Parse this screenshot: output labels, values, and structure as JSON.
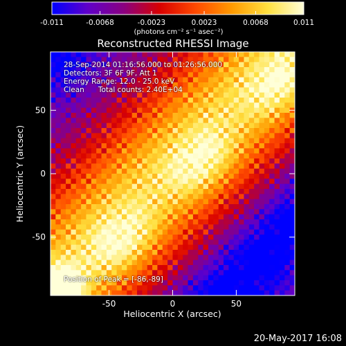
{
  "chart_data": {
    "type": "heatmap",
    "title": "Reconstructed RHESSI Image",
    "xlabel": "Heliocentric X (arcsec)",
    "ylabel": "Heliocentric Y (arcsec)",
    "xlim": [
      -96,
      96
    ],
    "ylim": [
      -96,
      96
    ],
    "x_ticks": [
      "-50",
      "0",
      "50"
    ],
    "y_ticks": [
      "50",
      "0",
      "-50"
    ],
    "x_tick_values": [
      -50,
      0,
      50
    ],
    "y_tick_values": [
      50,
      0,
      -50
    ],
    "colorbar": {
      "range": [
        -0.011,
        0.011
      ],
      "tick_labels": [
        "-0.011",
        "-0.0068",
        "-0.0023",
        "0.0023",
        "0.0068",
        "0.011"
      ],
      "tick_values": [
        -0.011,
        -0.0068,
        -0.0023,
        0.0023,
        0.0068,
        0.011
      ],
      "unit_label": "(photons cm⁻² s⁻¹ asec⁻²)"
    },
    "annotations": {
      "time_range": "28-Sep-2014 01:16:56.000 to 01:26:56.000",
      "detectors": "Detectors: 3F 6F 9F, Att 1",
      "energy_range": "Energy Range: 12.0 - 25.0 keV",
      "clean_line": "Clean      Total counts: 2.40E+04",
      "peak_position": "Position of Peak = [-86,-89]"
    },
    "colors": {
      "colormap": [
        "#0000ff",
        "#6000c8",
        "#8a0080",
        "#d80000",
        "#ff4a00",
        "#ff9a00",
        "#ffe040",
        "#ffffd8"
      ]
    }
  },
  "footer": {
    "date": "20-May-2017 16:08"
  }
}
